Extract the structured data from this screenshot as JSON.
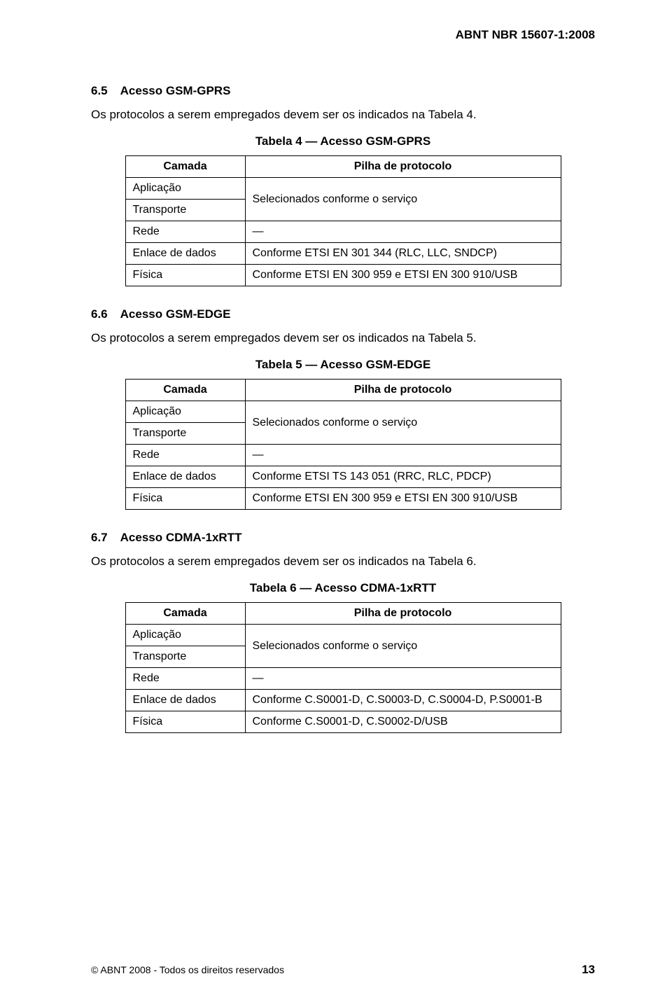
{
  "header": "ABNT NBR 15607-1:2008",
  "sections": [
    {
      "num": "6.5",
      "title": "Acesso GSM-GPRS",
      "intro": "Os protocolos a serem empregados devem ser os indicados na Tabela 4.",
      "table": {
        "caption": "Tabela 4 — Acesso GSM-GPRS",
        "col_left_header": "Camada",
        "col_right_header": "Pilha de protocolo",
        "rows": [
          {
            "left": "Aplicação",
            "right": "Selecionados conforme o serviço",
            "merge_right_with_next": true
          },
          {
            "left": "Transporte"
          },
          {
            "left": "Rede",
            "right": "—"
          },
          {
            "left": "Enlace de dados",
            "right": "Conforme ETSI EN 301 344 (RLC, LLC, SNDCP)"
          },
          {
            "left": "Física",
            "right": "Conforme ETSI EN 300 959 e ETSI EN 300 910/USB"
          }
        ]
      }
    },
    {
      "num": "6.6",
      "title": "Acesso GSM-EDGE",
      "intro": "Os protocolos a serem empregados devem ser os indicados na Tabela 5.",
      "table": {
        "caption": "Tabela 5 — Acesso GSM-EDGE",
        "col_left_header": "Camada",
        "col_right_header": "Pilha de protocolo",
        "rows": [
          {
            "left": "Aplicação",
            "right": "Selecionados conforme o serviço",
            "merge_right_with_next": true
          },
          {
            "left": "Transporte"
          },
          {
            "left": "Rede",
            "right": "—"
          },
          {
            "left": "Enlace de dados",
            "right": "Conforme ETSI TS 143 051 (RRC, RLC, PDCP)"
          },
          {
            "left": "Física",
            "right": "Conforme ETSI EN 300 959 e ETSI EN 300 910/USB"
          }
        ]
      }
    },
    {
      "num": "6.7",
      "title": "Acesso CDMA-1xRTT",
      "intro": "Os protocolos a serem empregados devem ser os indicados na Tabela 6.",
      "table": {
        "caption": "Tabela 6 — Acesso CDMA-1xRTT",
        "col_left_header": "Camada",
        "col_right_header": "Pilha de protocolo",
        "rows": [
          {
            "left": "Aplicação",
            "right": "Selecionados conforme o serviço",
            "merge_right_with_next": true
          },
          {
            "left": "Transporte"
          },
          {
            "left": "Rede",
            "right": "—"
          },
          {
            "left": "Enlace de dados",
            "right": "Conforme C.S0001-D, C.S0003-D, C.S0004-D, P.S0001-B"
          },
          {
            "left": "Física",
            "right": "Conforme C.S0001-D, C.S0002-D/USB"
          }
        ]
      }
    }
  ],
  "footer": {
    "copyright": "© ABNT 2008 - Todos os direitos reservados",
    "page": "13"
  }
}
